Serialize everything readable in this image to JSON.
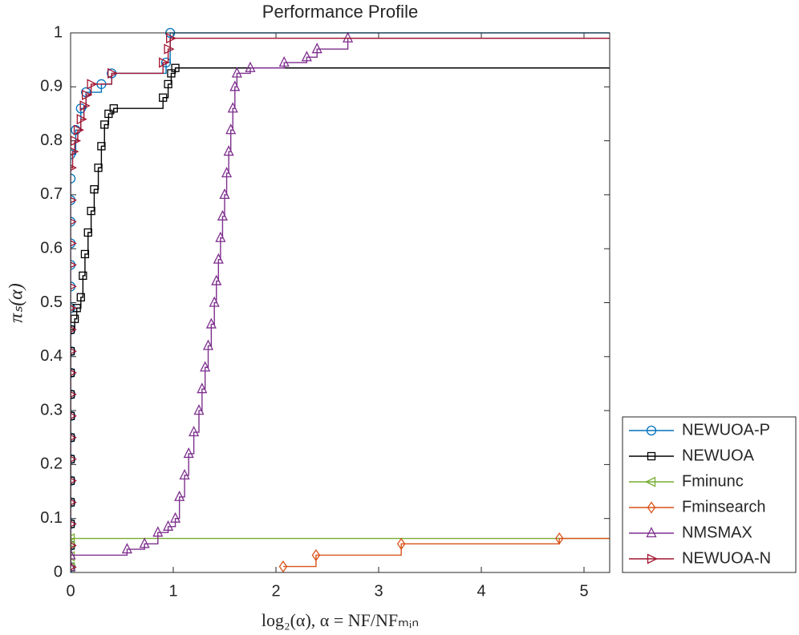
{
  "chart_data": {
    "type": "step",
    "title": "Performance Profile",
    "xlabel": "log₂(α),    α = NF/NFₘᵢₙ",
    "ylabel": "πₛ(α)",
    "xlim": [
      0,
      5.25
    ],
    "ylim": [
      0,
      1
    ],
    "xticks": [
      0,
      1,
      2,
      3,
      4,
      5
    ],
    "yticks": [
      0,
      0.1,
      0.2,
      0.3,
      0.4,
      0.5,
      0.6,
      0.7,
      0.8,
      0.9,
      1
    ],
    "legend": "outside-lower-right",
    "series": [
      {
        "name": "NEWUOA-P",
        "color": "#0072bd",
        "marker": "circle",
        "x": [
          0,
          0,
          0,
          0,
          0,
          0,
          0,
          0,
          0,
          0,
          0,
          0,
          0,
          0,
          0,
          0,
          0,
          0,
          0,
          0,
          0.05,
          0.1,
          0.15,
          0.3,
          0.4,
          0.93,
          0.97
        ],
        "values": [
          0.01,
          0.05,
          0.09,
          0.13,
          0.17,
          0.21,
          0.25,
          0.29,
          0.33,
          0.37,
          0.41,
          0.45,
          0.49,
          0.53,
          0.57,
          0.61,
          0.65,
          0.69,
          0.73,
          0.775,
          0.82,
          0.86,
          0.89,
          0.905,
          0.925,
          0.945,
          1
        ]
      },
      {
        "name": "NEWUOA",
        "color": "#000000",
        "marker": "square",
        "x": [
          0,
          0,
          0,
          0,
          0,
          0,
          0,
          0,
          0,
          0,
          0,
          0,
          0.04,
          0.06,
          0.1,
          0.12,
          0.14,
          0.17,
          0.2,
          0.23,
          0.27,
          0.3,
          0.33,
          0.37,
          0.42,
          0.9,
          0.95,
          0.98,
          1.02
        ],
        "values": [
          0.01,
          0.05,
          0.09,
          0.13,
          0.17,
          0.21,
          0.25,
          0.29,
          0.33,
          0.37,
          0.41,
          0.45,
          0.47,
          0.49,
          0.51,
          0.55,
          0.59,
          0.63,
          0.67,
          0.71,
          0.75,
          0.79,
          0.83,
          0.85,
          0.86,
          0.88,
          0.905,
          0.925,
          0.935
        ]
      },
      {
        "name": "Fminunc",
        "color": "#77ac30",
        "marker": "tri-left",
        "x": [
          0,
          0,
          0,
          0
        ],
        "values": [
          0.01,
          0.03,
          0.055,
          0.063
        ]
      },
      {
        "name": "Fminsearch",
        "color": "#d95319",
        "marker": "diamond",
        "x": [
          2.07,
          2.39,
          3.22,
          4.76
        ],
        "values": [
          0.011,
          0.032,
          0.053,
          0.063
        ]
      },
      {
        "name": "NMSMAX",
        "color": "#7e2f8e",
        "marker": "tri-up",
        "x": [
          0,
          0,
          0.55,
          0.72,
          0.85,
          0.95,
          1.02,
          1.06,
          1.11,
          1.15,
          1.2,
          1.25,
          1.28,
          1.31,
          1.34,
          1.37,
          1.4,
          1.42,
          1.44,
          1.46,
          1.48,
          1.5,
          1.52,
          1.54,
          1.56,
          1.58,
          1.6,
          1.62,
          1.75,
          2.08,
          2.3,
          2.4,
          2.7
        ],
        "values": [
          0.01,
          0.032,
          0.043,
          0.053,
          0.074,
          0.085,
          0.1,
          0.14,
          0.18,
          0.22,
          0.26,
          0.3,
          0.34,
          0.38,
          0.42,
          0.46,
          0.5,
          0.54,
          0.58,
          0.62,
          0.66,
          0.7,
          0.74,
          0.78,
          0.82,
          0.86,
          0.9,
          0.925,
          0.935,
          0.945,
          0.955,
          0.97,
          0.99
        ]
      },
      {
        "name": "NEWUOA-N",
        "color": "#a2142f",
        "marker": "tri-right",
        "x": [
          0,
          0,
          0,
          0,
          0,
          0,
          0,
          0,
          0,
          0,
          0,
          0,
          0,
          0,
          0,
          0,
          0,
          0,
          0,
          0.02,
          0.04,
          0.07,
          0.1,
          0.13,
          0.15,
          0.2,
          0.4,
          0.9,
          0.95,
          0.97
        ],
        "values": [
          0.01,
          0.05,
          0.09,
          0.13,
          0.17,
          0.21,
          0.25,
          0.29,
          0.33,
          0.37,
          0.41,
          0.45,
          0.49,
          0.53,
          0.57,
          0.61,
          0.65,
          0.69,
          0.75,
          0.78,
          0.8,
          0.82,
          0.84,
          0.865,
          0.885,
          0.905,
          0.925,
          0.945,
          0.97,
          0.99
        ]
      }
    ]
  }
}
